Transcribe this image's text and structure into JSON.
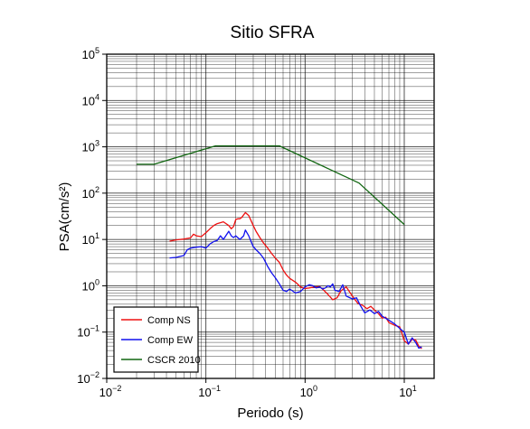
{
  "chart_data": {
    "type": "line",
    "title": "Sitio SFRA",
    "xlabel": "Periodo (s)",
    "ylabel": "PSA(cm/s²)",
    "xscale": "log",
    "yscale": "log",
    "xlim": [
      0.01,
      20
    ],
    "ylim": [
      0.01,
      100000
    ],
    "grid": true,
    "legend_position": "bottom-left",
    "x_ticks": [
      {
        "value": 0.01,
        "base": "10",
        "exp": "−2"
      },
      {
        "value": 0.1,
        "base": "10",
        "exp": "−1"
      },
      {
        "value": 1,
        "base": "10",
        "exp": "0"
      },
      {
        "value": 10,
        "base": "10",
        "exp": "1"
      }
    ],
    "y_ticks": [
      {
        "value": 0.01,
        "base": "10",
        "exp": "−2"
      },
      {
        "value": 0.1,
        "base": "10",
        "exp": "−1"
      },
      {
        "value": 1,
        "base": "10",
        "exp": "0"
      },
      {
        "value": 10,
        "base": "10",
        "exp": "1"
      },
      {
        "value": 100,
        "base": "10",
        "exp": "2"
      },
      {
        "value": 1000,
        "base": "10",
        "exp": "3"
      },
      {
        "value": 10000,
        "base": "10",
        "exp": "4"
      },
      {
        "value": 100000,
        "base": "10",
        "exp": "5"
      }
    ],
    "series": [
      {
        "name": "Comp NS",
        "color": "#ee1111",
        "x": [
          0.043,
          0.05,
          0.06,
          0.07,
          0.075,
          0.08,
          0.09,
          0.1,
          0.11,
          0.12,
          0.13,
          0.15,
          0.17,
          0.18,
          0.19,
          0.2,
          0.21,
          0.22,
          0.23,
          0.25,
          0.27,
          0.3,
          0.32,
          0.35,
          0.38,
          0.42,
          0.46,
          0.5,
          0.55,
          0.6,
          0.65,
          0.7,
          0.8,
          0.9,
          1.0,
          1.1,
          1.2,
          1.4,
          1.5,
          1.7,
          1.9,
          2.1,
          2.3,
          2.6,
          3.0,
          3.4,
          3.8,
          4.2,
          4.6,
          5.0,
          5.5,
          6.0,
          6.5,
          7.0,
          8.0,
          9.0,
          10.0,
          11.0,
          12.0,
          13.0,
          14.0,
          15.0
        ],
        "values": [
          9.2,
          9.8,
          10.2,
          10.8,
          13,
          12,
          11.5,
          14,
          17,
          20,
          22,
          24,
          20,
          17,
          19,
          27,
          28,
          28,
          30,
          38,
          33,
          20,
          15,
          11,
          8.5,
          6.5,
          5,
          4,
          3.2,
          2.2,
          1.7,
          1.45,
          1.2,
          0.95,
          0.87,
          0.9,
          0.93,
          0.96,
          0.85,
          0.65,
          0.5,
          0.55,
          0.78,
          0.95,
          0.6,
          0.42,
          0.38,
          0.32,
          0.36,
          0.3,
          0.25,
          0.2,
          0.21,
          0.16,
          0.14,
          0.13,
          0.065,
          0.055,
          0.07,
          0.068,
          0.05,
          0.044
        ]
      },
      {
        "name": "Comp EW",
        "color": "#1111ee",
        "x": [
          0.043,
          0.05,
          0.06,
          0.065,
          0.07,
          0.08,
          0.09,
          0.1,
          0.11,
          0.12,
          0.13,
          0.14,
          0.15,
          0.17,
          0.18,
          0.19,
          0.2,
          0.22,
          0.24,
          0.25,
          0.27,
          0.3,
          0.32,
          0.35,
          0.38,
          0.42,
          0.46,
          0.5,
          0.55,
          0.6,
          0.65,
          0.7,
          0.8,
          0.9,
          1.0,
          1.1,
          1.2,
          1.3,
          1.4,
          1.5,
          1.6,
          1.7,
          1.8,
          1.9,
          2.0,
          2.2,
          2.4,
          2.6,
          3.0,
          3.3,
          3.6,
          4.0,
          4.5,
          5.0,
          5.5,
          6.0,
          7.0,
          8.0,
          9.0,
          10.0,
          11.0,
          12.0,
          13.0,
          14.0,
          15.0
        ],
        "values": [
          4,
          4.1,
          4.5,
          6,
          6.5,
          6.8,
          7,
          6.5,
          8,
          9,
          9.5,
          12,
          10,
          15,
          12,
          11,
          12,
          10,
          12,
          16,
          12,
          7,
          6,
          5,
          4,
          2.6,
          1.9,
          1.5,
          1.1,
          0.8,
          0.75,
          0.85,
          0.7,
          0.75,
          0.95,
          1.05,
          1.0,
          0.9,
          0.95,
          0.85,
          0.9,
          1.0,
          0.95,
          1.1,
          0.8,
          0.75,
          1.05,
          0.6,
          0.52,
          0.55,
          0.38,
          0.26,
          0.3,
          0.25,
          0.28,
          0.22,
          0.18,
          0.15,
          0.12,
          0.1,
          0.055,
          0.075,
          0.06,
          0.045,
          0.048
        ]
      },
      {
        "name": "CSCR 2010",
        "color": "#116611",
        "x": [
          0.02,
          0.03,
          0.125,
          0.55,
          3.5,
          10
        ],
        "values": [
          420,
          420,
          1050,
          1050,
          165,
          21
        ]
      }
    ]
  }
}
